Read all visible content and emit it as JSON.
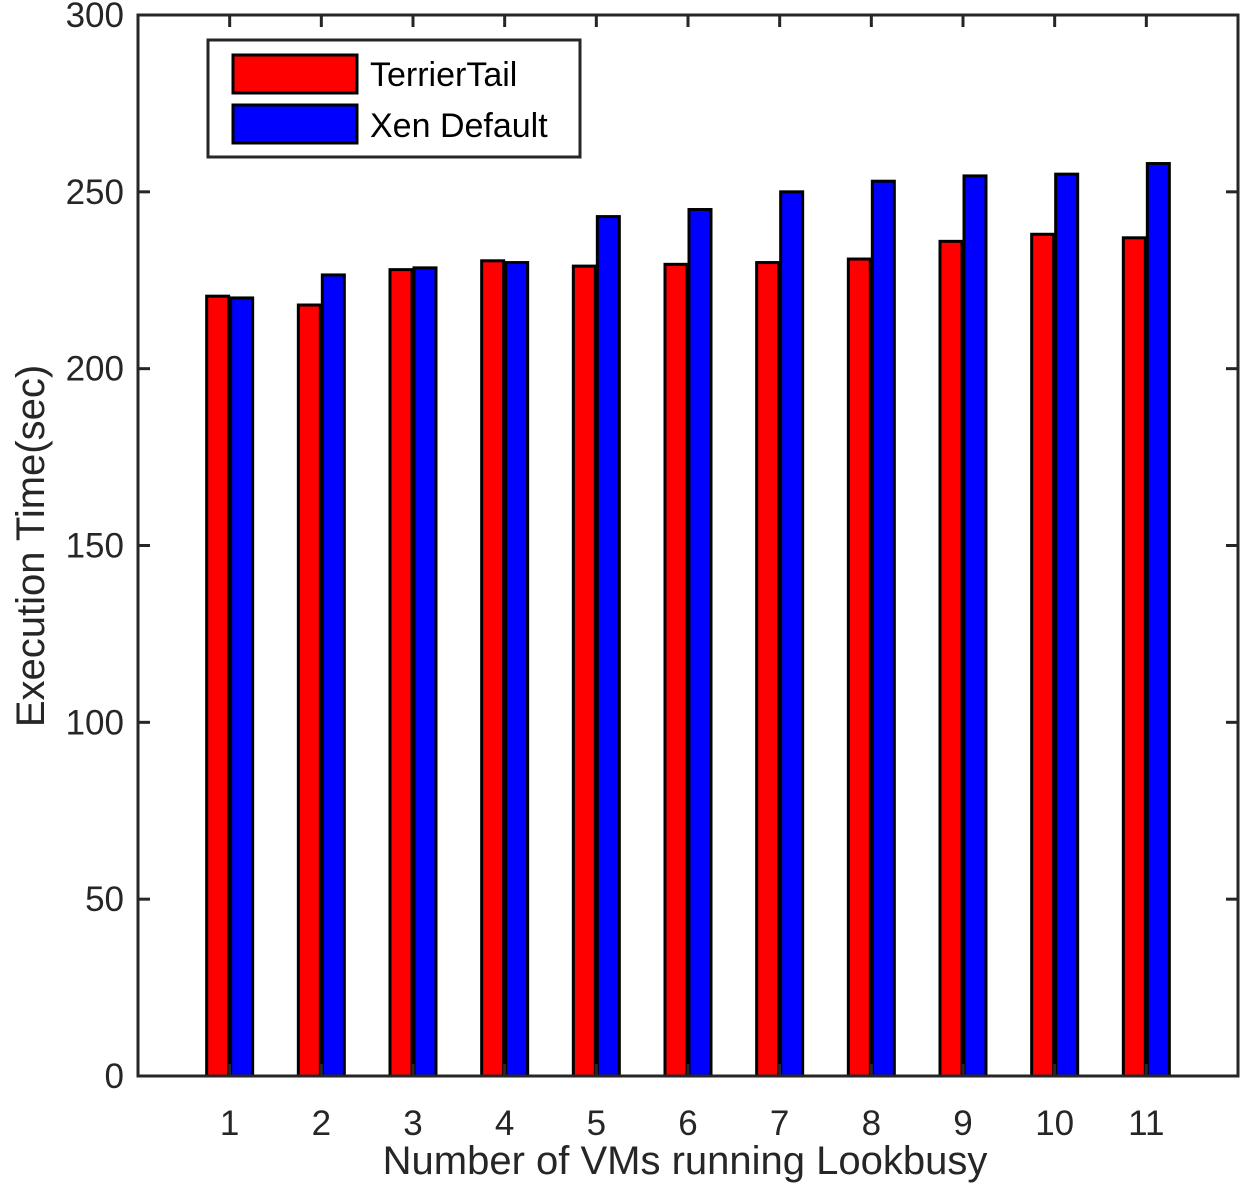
{
  "chart_data": {
    "type": "bar",
    "title": "",
    "xlabel": "Number of VMs running Lookbusy",
    "ylabel": "Execution Time(sec)",
    "ylim": [
      0,
      300
    ],
    "yticks": [
      0,
      50,
      100,
      150,
      200,
      250,
      300
    ],
    "categories": [
      "1",
      "2",
      "3",
      "4",
      "5",
      "6",
      "7",
      "8",
      "9",
      "10",
      "11"
    ],
    "series": [
      {
        "name": "TerrierTail",
        "color": "#ff0000",
        "values": [
          220.5,
          218,
          228,
          230.5,
          229,
          229.5,
          230,
          231,
          236,
          238,
          237
        ]
      },
      {
        "name": "Xen Default",
        "color": "#0000ff",
        "values": [
          220,
          226.5,
          228.5,
          230,
          243,
          245,
          250,
          253,
          254.5,
          255,
          258
        ]
      }
    ],
    "legend_position": "top-left",
    "grid": false
  }
}
